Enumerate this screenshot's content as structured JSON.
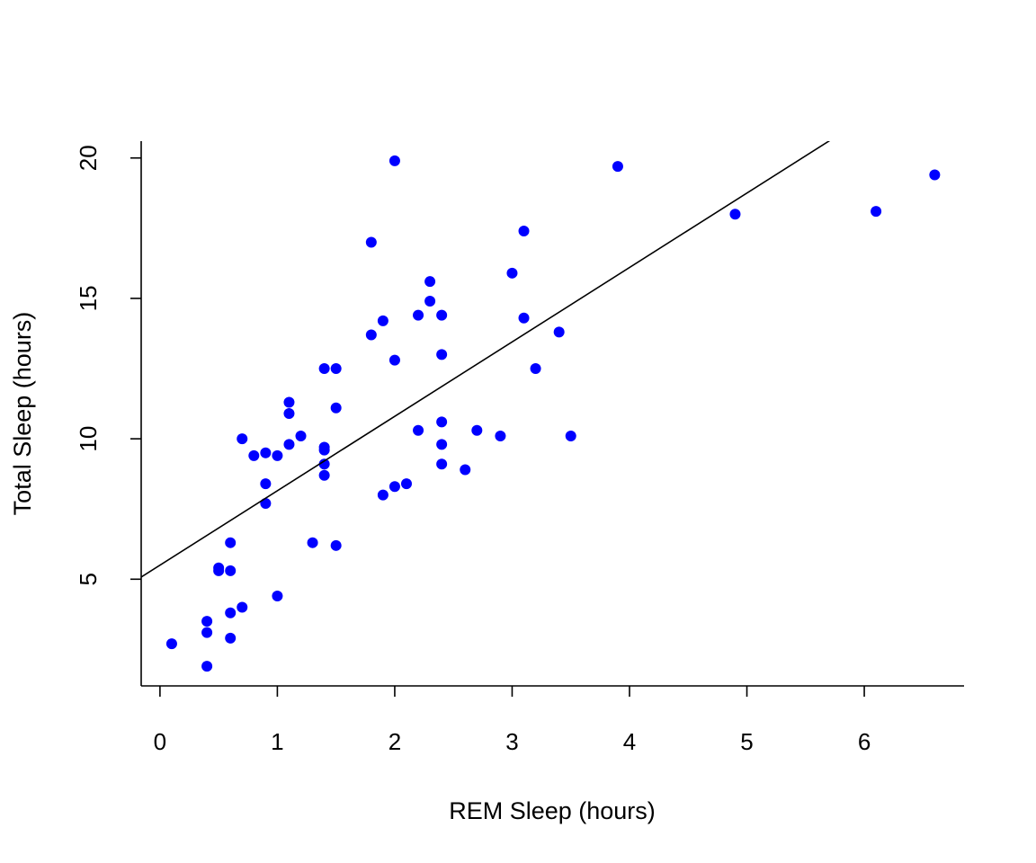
{
  "chart_data": {
    "type": "scatter",
    "title": "",
    "xlabel": "REM Sleep (hours)",
    "ylabel": "Total Sleep (hours)",
    "xlim": [
      -0.16,
      6.85
    ],
    "ylim": [
      1.2,
      20.6
    ],
    "xticks": [
      0,
      1,
      2,
      3,
      4,
      5,
      6
    ],
    "yticks": [
      5,
      10,
      15,
      20
    ],
    "point_color": "#0000ff",
    "line_color": "#000000",
    "grid": false,
    "legend": "none",
    "regression_line": {
      "intercept": 5.5,
      "slope": 2.65
    },
    "points": [
      {
        "x": 0.1,
        "y": 2.7
      },
      {
        "x": 0.4,
        "y": 1.9
      },
      {
        "x": 0.4,
        "y": 3.1
      },
      {
        "x": 0.4,
        "y": 3.5
      },
      {
        "x": 0.5,
        "y": 5.3
      },
      {
        "x": 0.5,
        "y": 5.4
      },
      {
        "x": 0.6,
        "y": 2.9
      },
      {
        "x": 0.6,
        "y": 3.8
      },
      {
        "x": 0.6,
        "y": 5.3
      },
      {
        "x": 0.6,
        "y": 6.3
      },
      {
        "x": 0.7,
        "y": 4.0
      },
      {
        "x": 0.7,
        "y": 10.0
      },
      {
        "x": 0.8,
        "y": 9.4
      },
      {
        "x": 0.9,
        "y": 7.7
      },
      {
        "x": 0.9,
        "y": 8.4
      },
      {
        "x": 0.9,
        "y": 9.5
      },
      {
        "x": 1.0,
        "y": 4.4
      },
      {
        "x": 1.0,
        "y": 9.4
      },
      {
        "x": 1.1,
        "y": 9.8
      },
      {
        "x": 1.1,
        "y": 10.9
      },
      {
        "x": 1.1,
        "y": 11.3
      },
      {
        "x": 1.2,
        "y": 10.1
      },
      {
        "x": 1.3,
        "y": 6.3
      },
      {
        "x": 1.4,
        "y": 8.7
      },
      {
        "x": 1.4,
        "y": 9.1
      },
      {
        "x": 1.4,
        "y": 9.6
      },
      {
        "x": 1.4,
        "y": 9.7
      },
      {
        "x": 1.4,
        "y": 12.5
      },
      {
        "x": 1.5,
        "y": 6.2
      },
      {
        "x": 1.5,
        "y": 11.1
      },
      {
        "x": 1.5,
        "y": 12.5
      },
      {
        "x": 1.8,
        "y": 13.7
      },
      {
        "x": 1.8,
        "y": 17.0
      },
      {
        "x": 1.9,
        "y": 8.0
      },
      {
        "x": 1.9,
        "y": 14.2
      },
      {
        "x": 2.0,
        "y": 8.3
      },
      {
        "x": 2.0,
        "y": 12.8
      },
      {
        "x": 2.0,
        "y": 19.9
      },
      {
        "x": 2.1,
        "y": 8.4
      },
      {
        "x": 2.2,
        "y": 10.3
      },
      {
        "x": 2.2,
        "y": 14.4
      },
      {
        "x": 2.3,
        "y": 14.9
      },
      {
        "x": 2.3,
        "y": 15.6
      },
      {
        "x": 2.4,
        "y": 9.1
      },
      {
        "x": 2.4,
        "y": 9.8
      },
      {
        "x": 2.4,
        "y": 10.6
      },
      {
        "x": 2.4,
        "y": 13.0
      },
      {
        "x": 2.4,
        "y": 14.4
      },
      {
        "x": 2.6,
        "y": 8.9
      },
      {
        "x": 2.7,
        "y": 10.3
      },
      {
        "x": 2.9,
        "y": 10.1
      },
      {
        "x": 3.0,
        "y": 15.9
      },
      {
        "x": 3.1,
        "y": 14.3
      },
      {
        "x": 3.1,
        "y": 17.4
      },
      {
        "x": 3.2,
        "y": 12.5
      },
      {
        "x": 3.4,
        "y": 13.8
      },
      {
        "x": 3.5,
        "y": 10.1
      },
      {
        "x": 3.9,
        "y": 19.7
      },
      {
        "x": 4.9,
        "y": 18.0
      },
      {
        "x": 6.1,
        "y": 18.1
      },
      {
        "x": 6.6,
        "y": 19.4
      }
    ]
  }
}
